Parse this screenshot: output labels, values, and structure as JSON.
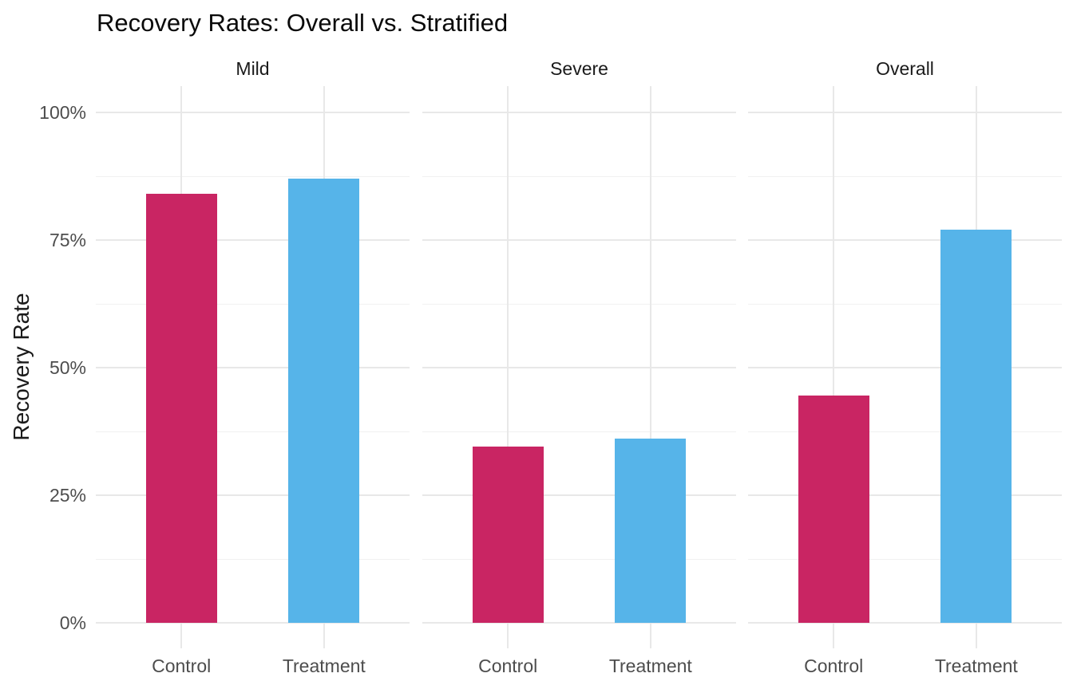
{
  "title": "Recovery Rates: Overall vs. Stratified",
  "y_axis": {
    "label": "Recovery Rate",
    "tick_labels": [
      "0%",
      "25%",
      "50%",
      "75%",
      "100%"
    ],
    "tick_values": [
      0,
      25,
      50,
      75,
      100
    ]
  },
  "colors": {
    "control_bar": "#C92563",
    "treatment_bar": "#56B4E9",
    "grid_major": "#E8E8E8",
    "grid_minor": "#F1F1F1",
    "axis_text": "#4D4D4D",
    "strip_text": "#1A1A1A",
    "title_text": "#0A0A0A",
    "background": "#FFFFFF"
  },
  "chart_data": {
    "type": "bar",
    "title": "Recovery Rates: Overall vs. Stratified",
    "xlabel": "",
    "ylabel": "Recovery Rate",
    "unit": "percent",
    "ylim": [
      0,
      100
    ],
    "y_major_ticks": [
      0,
      25,
      50,
      75,
      100
    ],
    "y_minor_ticks": [
      12.5,
      37.5,
      62.5,
      87.5
    ],
    "y_tick_labels": [
      "0%",
      "25%",
      "50%",
      "75%",
      "100%"
    ],
    "facets": [
      "Mild",
      "Severe",
      "Overall"
    ],
    "categories": [
      "Control",
      "Treatment"
    ],
    "series": [
      {
        "facet": "Mild",
        "values": [
          84,
          87
        ]
      },
      {
        "facet": "Severe",
        "values": [
          34.5,
          36
        ]
      },
      {
        "facet": "Overall",
        "values": [
          44.5,
          77
        ]
      }
    ],
    "grid": true,
    "legend": "none",
    "facet_layout": "columns"
  }
}
